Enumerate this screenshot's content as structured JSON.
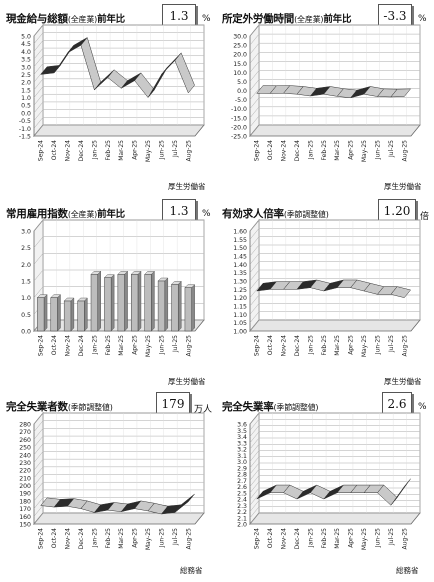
{
  "panels": [
    {
      "title": "現金給与総額",
      "title_sub": "(全産業)",
      "title_suffix": "前年比",
      "value": "1.3",
      "unit": "%",
      "source": "厚生労働省",
      "chart_data": {
        "type": "line",
        "categories": [
          "Sep-24",
          "Oct-24",
          "Nov-24",
          "Dec-24",
          "Jan-25",
          "Feb-25",
          "Mar-25",
          "Apr-25",
          "May-25",
          "Jun-25",
          "Jul-25",
          "Aug-25"
        ],
        "values": [
          2.5,
          2.6,
          3.9,
          4.4,
          1.5,
          2.3,
          1.6,
          2.1,
          1.0,
          2.5,
          3.4,
          1.3
        ],
        "yticks": [
          "5.0",
          "4.5",
          "4.0",
          "3.5",
          "3.0",
          "2.5",
          "2.0",
          "1.5",
          "1.0",
          "0.5",
          "0.0",
          "-0.5",
          "-1.0",
          "-1.5"
        ],
        "ylim": [
          -1.5,
          5.0
        ]
      }
    },
    {
      "title": "所定外労働時間",
      "title_sub": "(全産業)",
      "title_suffix": "前年比",
      "value": "-3.3",
      "unit": "%",
      "source": "厚生労働省",
      "chart_data": {
        "type": "line",
        "categories": [
          "Sep-24",
          "Oct-24",
          "Nov-24",
          "Dec-24",
          "Jan-25",
          "Feb-25",
          "Mar-25",
          "Apr-25",
          "May-25",
          "Jun-25",
          "Jul-25",
          "Aug-25"
        ],
        "values": [
          -1.5,
          -1.6,
          -1.5,
          -2.0,
          -3.0,
          -2.0,
          -3.2,
          -4.0,
          -2.0,
          -3.3,
          -3.5,
          -3.3
        ],
        "yticks": [
          "30.0",
          "25.0",
          "20.0",
          "15.0",
          "10.0",
          "5.0",
          "0.0",
          "-5.0",
          "-10.0",
          "-15.0",
          "-20.0",
          "-25.0"
        ],
        "ylim": [
          -25.0,
          30.0
        ]
      }
    },
    {
      "title": "常用雇用指数",
      "title_sub": "(全産業)",
      "title_suffix": "前年比",
      "value": "1.3",
      "unit": "%",
      "source": "厚生労働省",
      "chart_data": {
        "type": "bar",
        "categories": [
          "Sep-24",
          "Oct-24",
          "Nov-24",
          "Dec-24",
          "Jan-25",
          "Feb-25",
          "Mar-25",
          "Apr-25",
          "May-25",
          "Jun-25",
          "Jul-25",
          "Aug-25"
        ],
        "values": [
          1.0,
          1.0,
          0.9,
          0.9,
          1.7,
          1.6,
          1.7,
          1.7,
          1.7,
          1.5,
          1.4,
          1.3
        ],
        "yticks": [
          "3.0",
          "2.5",
          "2.0",
          "1.5",
          "1.0",
          "0.5",
          "0.0"
        ],
        "ylim": [
          0.0,
          3.0
        ]
      }
    },
    {
      "title": "有効求人倍率",
      "title_sub": "(季節調整値)",
      "title_suffix": "",
      "value": "1.20",
      "unit": "倍",
      "source": "厚生労働省",
      "chart_data": {
        "type": "line",
        "categories": [
          "Sep-24",
          "Oct-24",
          "Nov-24",
          "Dec-24",
          "Jan-25",
          "Feb-25",
          "Mar-25",
          "Apr-25",
          "May-25",
          "Jun-25",
          "Jul-25",
          "Aug-25"
        ],
        "values": [
          1.24,
          1.25,
          1.25,
          1.25,
          1.26,
          1.24,
          1.26,
          1.26,
          1.24,
          1.22,
          1.22,
          1.2
        ],
        "yticks": [
          "1.60",
          "1.55",
          "1.50",
          "1.45",
          "1.40",
          "1.35",
          "1.30",
          "1.25",
          "1.20",
          "1.15",
          "1.10",
          "1.05",
          "1.00"
        ],
        "ylim": [
          1.0,
          1.6
        ]
      }
    },
    {
      "title": "完全失業者数",
      "title_sub": "(季節調整値)",
      "title_suffix": "",
      "value": "179",
      "unit": "万人",
      "source": "総務省",
      "chart_data": {
        "type": "line",
        "categories": [
          "Sep-24",
          "Oct-24",
          "Nov-24",
          "Dec-24",
          "Jan-25",
          "Feb-25",
          "Mar-25",
          "Apr-25",
          "May-25",
          "Jun-25",
          "Jul-25",
          "Aug-25"
        ],
        "values": [
          174,
          172,
          173,
          170,
          165,
          168,
          166,
          170,
          167,
          163,
          165,
          179
        ],
        "yticks": [
          "280",
          "270",
          "260",
          "250",
          "240",
          "230",
          "220",
          "210",
          "200",
          "190",
          "180",
          "170",
          "160",
          "150"
        ],
        "ylim": [
          150,
          280
        ]
      }
    },
    {
      "title": "完全失業率",
      "title_sub": "(季節調整値)",
      "title_suffix": "",
      "value": "2.6",
      "unit": "%",
      "source": "総務省",
      "chart_data": {
        "type": "line",
        "categories": [
          "Sep-24",
          "Oct-24",
          "Nov-24",
          "Dec-24",
          "Jan-25",
          "Feb-25",
          "Mar-25",
          "Apr-25",
          "May-25",
          "Jun-25",
          "Jul-25",
          "Aug-25"
        ],
        "values": [
          2.4,
          2.5,
          2.5,
          2.4,
          2.5,
          2.4,
          2.5,
          2.5,
          2.5,
          2.5,
          2.3,
          2.6
        ],
        "yticks": [
          "3.6",
          "3.5",
          "3.4",
          "3.3",
          "3.2",
          "3.1",
          "3.0",
          "2.9",
          "2.8",
          "2.7",
          "2.6",
          "2.5",
          "2.4",
          "2.3",
          "2.2",
          "2.1",
          "2.0"
        ],
        "ylim": [
          2.0,
          3.6
        ]
      }
    }
  ]
}
